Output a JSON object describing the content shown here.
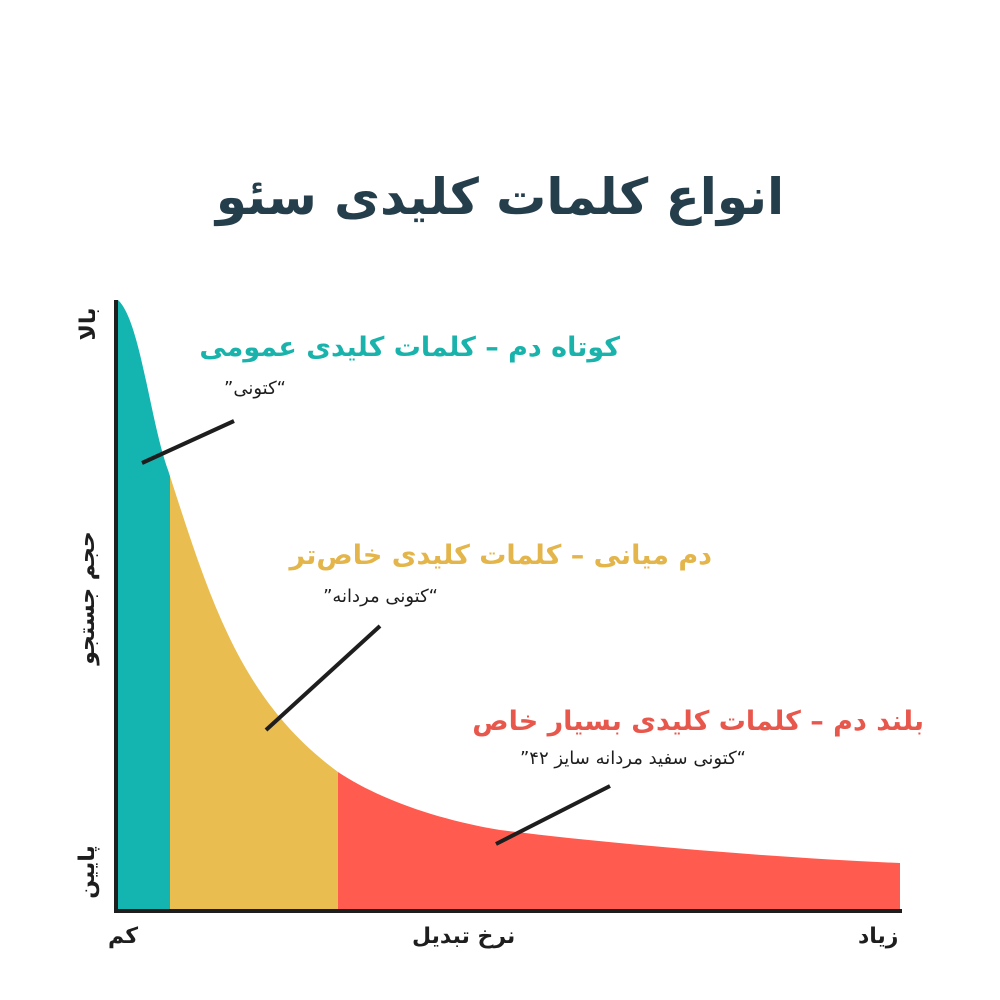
{
  "title": "انواع کلمات کلیدی سئو",
  "axes": {
    "x_label": "نرخ تبدیل",
    "x_low": "کم",
    "x_high": "زیاد",
    "y_label": "حجم جستجو",
    "y_low": "پایین",
    "y_high": "بالا"
  },
  "segments": [
    {
      "key": "short",
      "title": "کوتاه دم – کلمات کلیدی عمومی",
      "example": "“کتونی”",
      "color": "#14b5b0"
    },
    {
      "key": "mid",
      "title": "دم میانی – کلمات کلیدی خاص‌تر",
      "example": "“کتونی مردانه”",
      "color": "#e9bd4f"
    },
    {
      "key": "long",
      "title": "بلند دم – کلمات کلیدی بسیار خاص",
      "example": "“کتونی سفید مردانه سایز ۴۲”",
      "color": "#ff5b4e"
    }
  ],
  "colors": {
    "short_text": "#1ab3ac",
    "mid_text": "#e3b54a",
    "long_text": "#e8574c",
    "axis": "#1e1e1e",
    "title": "#253e4c"
  }
}
